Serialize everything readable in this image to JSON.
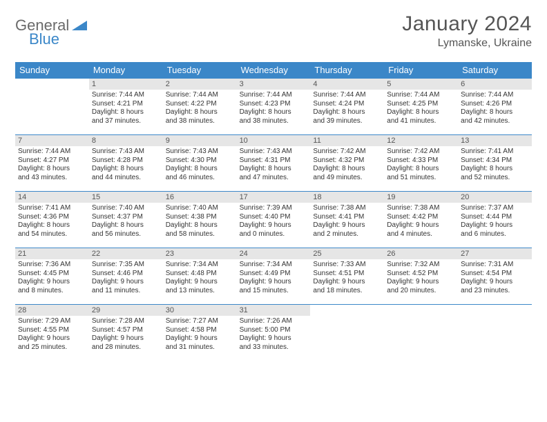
{
  "brand": {
    "part1": "General",
    "part2": "Blue",
    "accent_color": "#3b87c8",
    "gray_color": "#6a6a6a"
  },
  "title": {
    "month": "January 2024",
    "location": "Lymanske, Ukraine"
  },
  "colors": {
    "header_bg": "#3b87c8",
    "header_fg": "#ffffff",
    "daynum_bg": "#e6e6e6",
    "border": "#3b87c8",
    "text": "#333333"
  },
  "dayHeaders": [
    "Sunday",
    "Monday",
    "Tuesday",
    "Wednesday",
    "Thursday",
    "Friday",
    "Saturday"
  ],
  "weeks": [
    [
      null,
      {
        "num": "1",
        "sunrise": "Sunrise: 7:44 AM",
        "sunset": "Sunset: 4:21 PM",
        "day1": "Daylight: 8 hours",
        "day2": "and 37 minutes."
      },
      {
        "num": "2",
        "sunrise": "Sunrise: 7:44 AM",
        "sunset": "Sunset: 4:22 PM",
        "day1": "Daylight: 8 hours",
        "day2": "and 38 minutes."
      },
      {
        "num": "3",
        "sunrise": "Sunrise: 7:44 AM",
        "sunset": "Sunset: 4:23 PM",
        "day1": "Daylight: 8 hours",
        "day2": "and 38 minutes."
      },
      {
        "num": "4",
        "sunrise": "Sunrise: 7:44 AM",
        "sunset": "Sunset: 4:24 PM",
        "day1": "Daylight: 8 hours",
        "day2": "and 39 minutes."
      },
      {
        "num": "5",
        "sunrise": "Sunrise: 7:44 AM",
        "sunset": "Sunset: 4:25 PM",
        "day1": "Daylight: 8 hours",
        "day2": "and 41 minutes."
      },
      {
        "num": "6",
        "sunrise": "Sunrise: 7:44 AM",
        "sunset": "Sunset: 4:26 PM",
        "day1": "Daylight: 8 hours",
        "day2": "and 42 minutes."
      }
    ],
    [
      {
        "num": "7",
        "sunrise": "Sunrise: 7:44 AM",
        "sunset": "Sunset: 4:27 PM",
        "day1": "Daylight: 8 hours",
        "day2": "and 43 minutes."
      },
      {
        "num": "8",
        "sunrise": "Sunrise: 7:43 AM",
        "sunset": "Sunset: 4:28 PM",
        "day1": "Daylight: 8 hours",
        "day2": "and 44 minutes."
      },
      {
        "num": "9",
        "sunrise": "Sunrise: 7:43 AM",
        "sunset": "Sunset: 4:30 PM",
        "day1": "Daylight: 8 hours",
        "day2": "and 46 minutes."
      },
      {
        "num": "10",
        "sunrise": "Sunrise: 7:43 AM",
        "sunset": "Sunset: 4:31 PM",
        "day1": "Daylight: 8 hours",
        "day2": "and 47 minutes."
      },
      {
        "num": "11",
        "sunrise": "Sunrise: 7:42 AM",
        "sunset": "Sunset: 4:32 PM",
        "day1": "Daylight: 8 hours",
        "day2": "and 49 minutes."
      },
      {
        "num": "12",
        "sunrise": "Sunrise: 7:42 AM",
        "sunset": "Sunset: 4:33 PM",
        "day1": "Daylight: 8 hours",
        "day2": "and 51 minutes."
      },
      {
        "num": "13",
        "sunrise": "Sunrise: 7:41 AM",
        "sunset": "Sunset: 4:34 PM",
        "day1": "Daylight: 8 hours",
        "day2": "and 52 minutes."
      }
    ],
    [
      {
        "num": "14",
        "sunrise": "Sunrise: 7:41 AM",
        "sunset": "Sunset: 4:36 PM",
        "day1": "Daylight: 8 hours",
        "day2": "and 54 minutes."
      },
      {
        "num": "15",
        "sunrise": "Sunrise: 7:40 AM",
        "sunset": "Sunset: 4:37 PM",
        "day1": "Daylight: 8 hours",
        "day2": "and 56 minutes."
      },
      {
        "num": "16",
        "sunrise": "Sunrise: 7:40 AM",
        "sunset": "Sunset: 4:38 PM",
        "day1": "Daylight: 8 hours",
        "day2": "and 58 minutes."
      },
      {
        "num": "17",
        "sunrise": "Sunrise: 7:39 AM",
        "sunset": "Sunset: 4:40 PM",
        "day1": "Daylight: 9 hours",
        "day2": "and 0 minutes."
      },
      {
        "num": "18",
        "sunrise": "Sunrise: 7:38 AM",
        "sunset": "Sunset: 4:41 PM",
        "day1": "Daylight: 9 hours",
        "day2": "and 2 minutes."
      },
      {
        "num": "19",
        "sunrise": "Sunrise: 7:38 AM",
        "sunset": "Sunset: 4:42 PM",
        "day1": "Daylight: 9 hours",
        "day2": "and 4 minutes."
      },
      {
        "num": "20",
        "sunrise": "Sunrise: 7:37 AM",
        "sunset": "Sunset: 4:44 PM",
        "day1": "Daylight: 9 hours",
        "day2": "and 6 minutes."
      }
    ],
    [
      {
        "num": "21",
        "sunrise": "Sunrise: 7:36 AM",
        "sunset": "Sunset: 4:45 PM",
        "day1": "Daylight: 9 hours",
        "day2": "and 8 minutes."
      },
      {
        "num": "22",
        "sunrise": "Sunrise: 7:35 AM",
        "sunset": "Sunset: 4:46 PM",
        "day1": "Daylight: 9 hours",
        "day2": "and 11 minutes."
      },
      {
        "num": "23",
        "sunrise": "Sunrise: 7:34 AM",
        "sunset": "Sunset: 4:48 PM",
        "day1": "Daylight: 9 hours",
        "day2": "and 13 minutes."
      },
      {
        "num": "24",
        "sunrise": "Sunrise: 7:34 AM",
        "sunset": "Sunset: 4:49 PM",
        "day1": "Daylight: 9 hours",
        "day2": "and 15 minutes."
      },
      {
        "num": "25",
        "sunrise": "Sunrise: 7:33 AM",
        "sunset": "Sunset: 4:51 PM",
        "day1": "Daylight: 9 hours",
        "day2": "and 18 minutes."
      },
      {
        "num": "26",
        "sunrise": "Sunrise: 7:32 AM",
        "sunset": "Sunset: 4:52 PM",
        "day1": "Daylight: 9 hours",
        "day2": "and 20 minutes."
      },
      {
        "num": "27",
        "sunrise": "Sunrise: 7:31 AM",
        "sunset": "Sunset: 4:54 PM",
        "day1": "Daylight: 9 hours",
        "day2": "and 23 minutes."
      }
    ],
    [
      {
        "num": "28",
        "sunrise": "Sunrise: 7:29 AM",
        "sunset": "Sunset: 4:55 PM",
        "day1": "Daylight: 9 hours",
        "day2": "and 25 minutes."
      },
      {
        "num": "29",
        "sunrise": "Sunrise: 7:28 AM",
        "sunset": "Sunset: 4:57 PM",
        "day1": "Daylight: 9 hours",
        "day2": "and 28 minutes."
      },
      {
        "num": "30",
        "sunrise": "Sunrise: 7:27 AM",
        "sunset": "Sunset: 4:58 PM",
        "day1": "Daylight: 9 hours",
        "day2": "and 31 minutes."
      },
      {
        "num": "31",
        "sunrise": "Sunrise: 7:26 AM",
        "sunset": "Sunset: 5:00 PM",
        "day1": "Daylight: 9 hours",
        "day2": "and 33 minutes."
      },
      null,
      null,
      null
    ]
  ]
}
